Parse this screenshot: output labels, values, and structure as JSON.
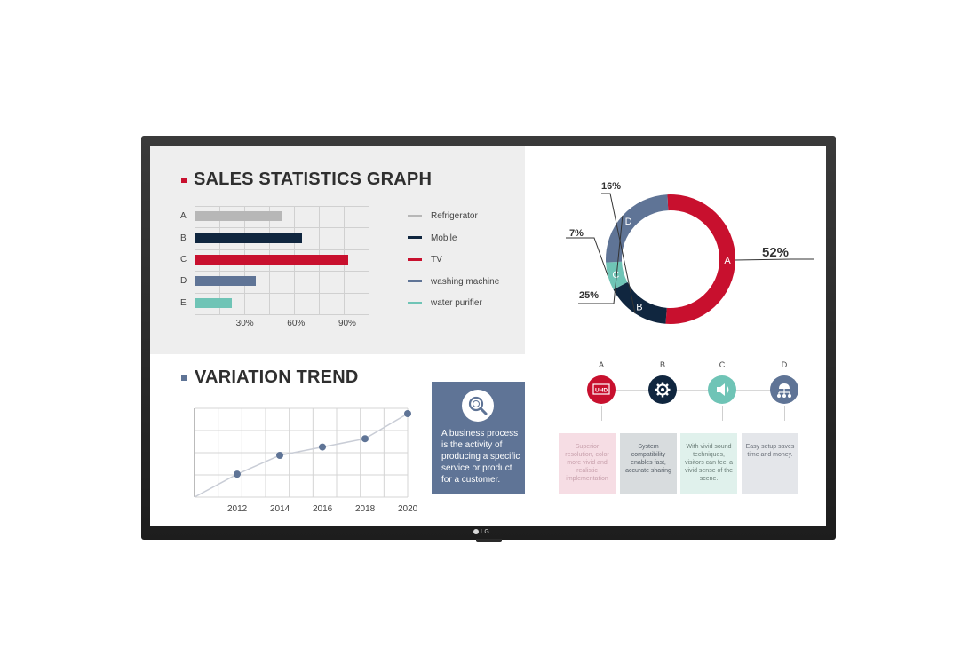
{
  "device": {
    "brand": "LG"
  },
  "sales": {
    "title": "SALES STATISTICS GRAPH",
    "title_marker_color": "#c8102e"
  },
  "variation": {
    "title": "VARIATION TREND",
    "title_marker_color": "#5f7496"
  },
  "info_box": {
    "icon": "search-icon",
    "text": "A business process is the activity of producing a specific service or product for a customer."
  },
  "donut": {
    "labels": {
      "a": "52%",
      "b": "16%",
      "c": "7%",
      "d": "25%"
    }
  },
  "steps": [
    {
      "letter": "A",
      "icon": "uhd-icon",
      "icon_text": "UHD",
      "color": "#c8102e",
      "card_bg": "#f6dde4",
      "card_color": "#c8a0ac",
      "text": "Superior resolution, color more vivid and realistic implementation"
    },
    {
      "letter": "B",
      "icon": "gear-icon",
      "color": "#10263f",
      "card_bg": "#d8dcde",
      "card_color": "#555d66",
      "text": "System compatibility enables fast, accurate sharing"
    },
    {
      "letter": "C",
      "icon": "speaker-icon",
      "color": "#6fc4b6",
      "card_bg": "#e0f1ec",
      "card_color": "#6a7d77",
      "text": "With vivid sound techniques, visitors can feel a vivid sense of the scene."
    },
    {
      "letter": "D",
      "icon": "network-icon",
      "color": "#5f7496",
      "card_bg": "#e4e6ea",
      "card_color": "#6a6f78",
      "text": "Easy setup saves time and money."
    }
  ],
  "chart_data": [
    {
      "type": "bar",
      "orientation": "horizontal",
      "title": "SALES STATISTICS GRAPH",
      "categories": [
        "A",
        "B",
        "C",
        "D",
        "E"
      ],
      "values": [
        51,
        63,
        90,
        36,
        22
      ],
      "series_names": [
        "Refrigerator",
        "Mobile",
        "TV",
        "washing machine",
        "water purifier"
      ],
      "colors": [
        "#b7b7b7",
        "#10263f",
        "#c8102e",
        "#5f7496",
        "#6fc4b6"
      ],
      "xticks": [
        "30%",
        "60%",
        "90%"
      ],
      "xtick_values": [
        30,
        60,
        90
      ],
      "xlim": [
        0,
        102
      ],
      "grid": true,
      "legend_position": "right"
    },
    {
      "type": "pie",
      "variant": "donut",
      "categories": [
        "A",
        "B",
        "C",
        "D"
      ],
      "values": [
        52,
        16,
        7,
        25
      ],
      "colors": [
        "#c8102e",
        "#10263f",
        "#6fc4b6",
        "#5f7496"
      ]
    },
    {
      "type": "line",
      "title": "VARIATION TREND",
      "x": [
        2010,
        2012,
        2014,
        2016,
        2018,
        2020
      ],
      "y": [
        0,
        1.1,
        2.0,
        2.4,
        2.8,
        4.0
      ],
      "xticks": [
        "2012",
        "2014",
        "2016",
        "2018",
        "2020"
      ],
      "xtick_values": [
        2012,
        2014,
        2016,
        2018,
        2020
      ],
      "xlim": [
        2010,
        2020
      ],
      "ylim": [
        0,
        4
      ],
      "color": "#5f7496",
      "grid": true
    }
  ]
}
